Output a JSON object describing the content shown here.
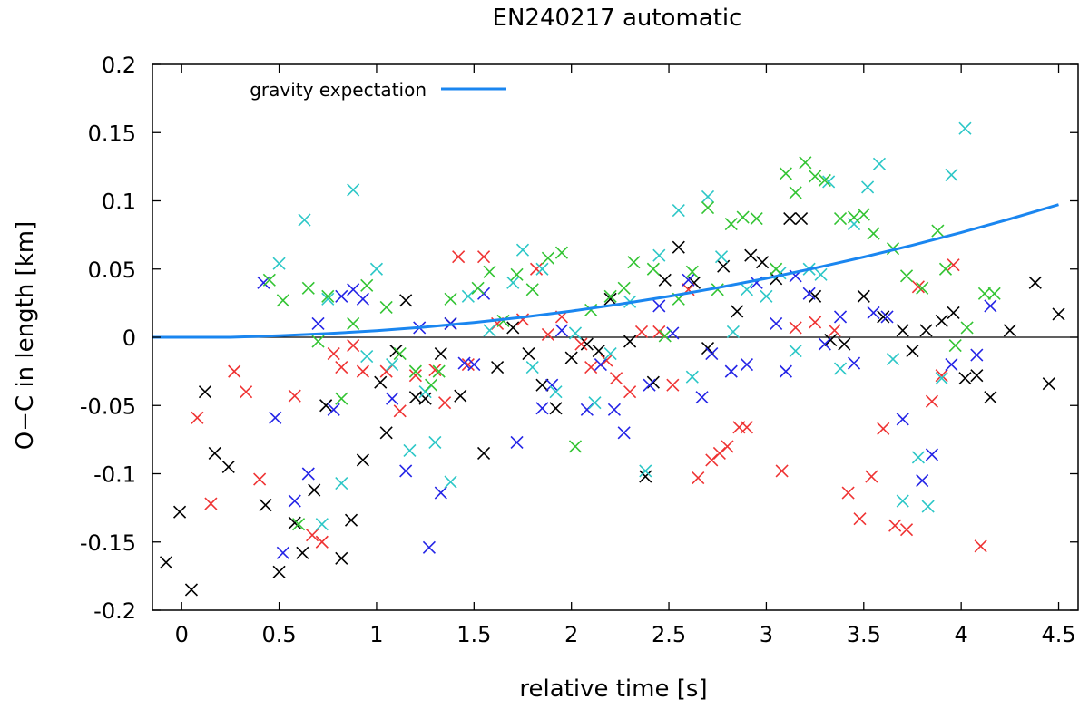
{
  "chart_data": {
    "type": "scatter",
    "title": "EN240217 automatic",
    "xlabel": "relative time [s]",
    "ylabel": "O−C in length [km]",
    "xlim": [
      -0.15,
      4.6
    ],
    "ylim": [
      -0.2,
      0.2
    ],
    "x_ticks": [
      0,
      0.5,
      1,
      1.5,
      2,
      2.5,
      3,
      3.5,
      4,
      4.5
    ],
    "x_tick_labels": [
      "0",
      "0.5",
      "1",
      "1.5",
      "2",
      "2.5",
      "3",
      "3.5",
      "4",
      "4.5"
    ],
    "y_ticks": [
      -0.2,
      -0.15,
      -0.1,
      -0.05,
      0,
      0.05,
      0.1,
      0.15,
      0.2
    ],
    "y_tick_labels": [
      "-0.2",
      "-0.15",
      "-0.1",
      "-0.05",
      "0",
      "0.05",
      "0.1",
      "0.15",
      "0.2"
    ],
    "zero_line": true,
    "legend": {
      "position": "top-left",
      "entries": [
        {
          "label": "gravity expectation",
          "color": "#1a86f0"
        }
      ]
    },
    "curve": {
      "name": "gravity expectation",
      "color": "#1a86f0",
      "x": [
        -0.15,
        0.25,
        0.5,
        0.75,
        1.0,
        1.25,
        1.5,
        1.75,
        2.0,
        2.25,
        2.5,
        2.75,
        3.0,
        3.25,
        3.5,
        3.75,
        4.0,
        4.25,
        4.5
      ],
      "y": [
        0.0,
        0.0,
        0.0012,
        0.0027,
        0.0048,
        0.0075,
        0.0108,
        0.0147,
        0.0192,
        0.0243,
        0.03,
        0.0363,
        0.0432,
        0.0507,
        0.0588,
        0.0675,
        0.0768,
        0.0867,
        0.0972
      ]
    },
    "series": [
      {
        "name": "black",
        "color": "#000000",
        "x": [
          -0.08,
          -0.01,
          0.05,
          0.12,
          0.17,
          0.24,
          0.43,
          0.5,
          0.58,
          0.62,
          0.68,
          0.74,
          0.82,
          0.87,
          0.93,
          1.02,
          1.05,
          1.1,
          1.15,
          1.2,
          1.25,
          1.33,
          1.38,
          1.43,
          1.55,
          1.62,
          1.7,
          1.78,
          1.85,
          1.92,
          2.0,
          2.08,
          2.14,
          2.2,
          2.3,
          2.38,
          2.42,
          2.48,
          2.55,
          2.63,
          2.7,
          2.78,
          2.85,
          2.92,
          2.98,
          3.05,
          3.12,
          3.18,
          3.25,
          3.33,
          3.4,
          3.5,
          3.6,
          3.7,
          3.75,
          3.82,
          3.9,
          3.96,
          4.02,
          4.08,
          4.15,
          4.25,
          4.38,
          4.45,
          4.5
        ],
        "y": [
          -0.165,
          -0.128,
          -0.185,
          -0.04,
          -0.085,
          -0.095,
          -0.123,
          -0.172,
          -0.136,
          -0.158,
          -0.112,
          -0.05,
          -0.162,
          -0.134,
          -0.09,
          -0.033,
          -0.07,
          -0.01,
          0.027,
          -0.044,
          -0.045,
          -0.012,
          0.01,
          -0.043,
          -0.085,
          -0.022,
          0.007,
          -0.012,
          -0.035,
          -0.052,
          -0.015,
          -0.005,
          -0.01,
          0.028,
          -0.003,
          -0.102,
          -0.033,
          0.042,
          0.066,
          0.04,
          -0.008,
          0.052,
          0.019,
          0.06,
          0.055,
          0.043,
          0.087,
          0.087,
          0.03,
          -0.002,
          -0.005,
          0.03,
          0.015,
          0.005,
          -0.01,
          0.005,
          0.012,
          0.018,
          -0.03,
          -0.028,
          -0.044,
          0.005,
          0.04,
          -0.034,
          0.017
        ]
      },
      {
        "name": "red",
        "color": "#ef3333",
        "x": [
          0.08,
          0.15,
          0.27,
          0.33,
          0.4,
          0.58,
          0.67,
          0.72,
          0.78,
          0.82,
          0.88,
          0.93,
          1.05,
          1.12,
          1.2,
          1.3,
          1.35,
          1.42,
          1.47,
          1.55,
          1.62,
          1.75,
          1.82,
          1.88,
          1.95,
          2.05,
          2.1,
          2.18,
          2.23,
          2.3,
          2.36,
          2.45,
          2.52,
          2.6,
          2.65,
          2.72,
          2.76,
          2.8,
          2.86,
          2.9,
          3.08,
          3.15,
          3.25,
          3.35,
          3.42,
          3.48,
          3.54,
          3.6,
          3.66,
          3.72,
          3.78,
          3.85,
          3.9,
          3.96,
          4.1
        ],
        "y": [
          -0.059,
          -0.122,
          -0.025,
          -0.04,
          -0.104,
          -0.043,
          -0.145,
          -0.15,
          -0.012,
          -0.022,
          -0.006,
          -0.025,
          -0.025,
          -0.054,
          -0.028,
          -0.024,
          -0.048,
          0.059,
          -0.02,
          0.059,
          0.01,
          0.013,
          0.05,
          0.002,
          0.015,
          -0.005,
          -0.022,
          -0.017,
          -0.03,
          -0.04,
          0.004,
          0.004,
          -0.035,
          0.035,
          -0.103,
          -0.09,
          -0.085,
          -0.08,
          -0.066,
          -0.066,
          -0.098,
          0.007,
          0.011,
          0.005,
          -0.114,
          -0.133,
          -0.102,
          -0.067,
          -0.138,
          -0.141,
          0.037,
          -0.047,
          -0.028,
          0.053,
          -0.153
        ]
      },
      {
        "name": "blue",
        "color": "#2424e6",
        "x": [
          0.42,
          0.48,
          0.52,
          0.58,
          0.65,
          0.7,
          0.78,
          0.82,
          0.88,
          0.93,
          1.08,
          1.15,
          1.22,
          1.27,
          1.33,
          1.38,
          1.45,
          1.5,
          1.55,
          1.72,
          1.85,
          1.9,
          1.95,
          2.08,
          2.15,
          2.22,
          2.27,
          2.4,
          2.45,
          2.52,
          2.6,
          2.67,
          2.72,
          2.82,
          2.9,
          2.95,
          3.05,
          3.1,
          3.15,
          3.22,
          3.3,
          3.38,
          3.45,
          3.55,
          3.62,
          3.7,
          3.8,
          3.85,
          3.95,
          4.08,
          4.15
        ],
        "y": [
          0.04,
          -0.059,
          -0.158,
          -0.12,
          -0.1,
          0.01,
          -0.053,
          0.03,
          0.035,
          0.028,
          -0.045,
          -0.098,
          0.007,
          -0.154,
          -0.114,
          0.01,
          -0.019,
          -0.02,
          0.032,
          -0.077,
          -0.052,
          -0.035,
          0.005,
          -0.053,
          -0.02,
          -0.053,
          -0.07,
          -0.035,
          0.023,
          0.003,
          0.042,
          -0.044,
          -0.012,
          -0.025,
          -0.02,
          0.04,
          0.01,
          -0.025,
          0.045,
          0.032,
          -0.005,
          0.015,
          -0.019,
          0.018,
          0.015,
          -0.06,
          -0.105,
          -0.086,
          -0.02,
          -0.013,
          0.023
        ]
      },
      {
        "name": "cyan",
        "color": "#2cc7c7",
        "x": [
          0.5,
          0.63,
          0.72,
          0.75,
          0.82,
          0.88,
          0.95,
          1.0,
          1.08,
          1.17,
          1.25,
          1.3,
          1.38,
          1.47,
          1.58,
          1.7,
          1.75,
          1.8,
          1.85,
          1.92,
          2.02,
          2.12,
          2.2,
          2.3,
          2.38,
          2.45,
          2.55,
          2.62,
          2.7,
          2.77,
          2.83,
          2.9,
          3.0,
          3.07,
          3.15,
          3.22,
          3.28,
          3.32,
          3.38,
          3.45,
          3.52,
          3.58,
          3.65,
          3.7,
          3.78,
          3.83,
          3.9,
          3.95,
          4.02
        ],
        "y": [
          0.054,
          0.086,
          -0.137,
          0.028,
          -0.107,
          0.108,
          -0.014,
          0.05,
          -0.02,
          -0.083,
          -0.04,
          -0.077,
          -0.106,
          0.03,
          0.005,
          0.04,
          0.064,
          -0.022,
          0.05,
          -0.04,
          0.003,
          -0.048,
          -0.012,
          0.026,
          -0.098,
          0.06,
          0.093,
          -0.029,
          0.103,
          0.059,
          0.004,
          0.035,
          0.03,
          0.047,
          -0.01,
          0.05,
          0.046,
          0.114,
          -0.023,
          0.083,
          0.11,
          0.127,
          -0.016,
          -0.12,
          -0.088,
          -0.124,
          -0.03,
          0.119,
          0.153
        ]
      },
      {
        "name": "green",
        "color": "#33c433",
        "x": [
          0.45,
          0.52,
          0.6,
          0.65,
          0.7,
          0.75,
          0.82,
          0.88,
          0.95,
          1.05,
          1.12,
          1.2,
          1.28,
          1.32,
          1.38,
          1.52,
          1.58,
          1.65,
          1.72,
          1.8,
          1.88,
          1.95,
          2.02,
          2.1,
          2.2,
          2.27,
          2.32,
          2.42,
          2.48,
          2.55,
          2.62,
          2.7,
          2.75,
          2.82,
          2.88,
          2.95,
          3.05,
          3.1,
          3.15,
          3.2,
          3.25,
          3.3,
          3.38,
          3.45,
          3.5,
          3.55,
          3.65,
          3.72,
          3.8,
          3.88,
          3.92,
          3.97,
          4.03,
          4.12,
          4.17
        ],
        "y": [
          0.042,
          0.027,
          -0.137,
          0.036,
          -0.003,
          0.03,
          -0.045,
          0.01,
          0.038,
          0.022,
          -0.012,
          -0.025,
          -0.035,
          -0.025,
          0.028,
          0.036,
          0.048,
          0.012,
          0.046,
          0.035,
          0.058,
          0.062,
          -0.08,
          0.02,
          0.03,
          0.036,
          0.055,
          0.05,
          0.001,
          0.028,
          0.048,
          0.095,
          0.035,
          0.083,
          0.088,
          0.087,
          0.05,
          0.12,
          0.106,
          0.128,
          0.118,
          0.115,
          0.087,
          0.088,
          0.09,
          0.076,
          0.065,
          0.045,
          0.036,
          0.078,
          0.05,
          -0.006,
          0.007,
          0.032,
          0.032
        ]
      }
    ]
  }
}
